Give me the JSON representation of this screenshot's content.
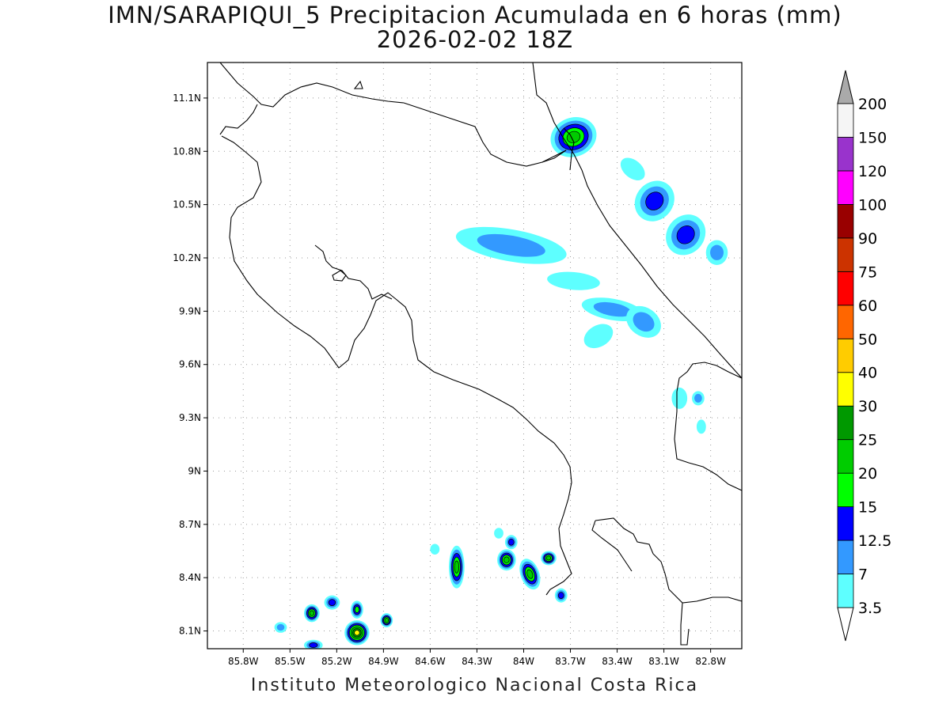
{
  "title": {
    "line1": "IMN/SARAPIQUI_5 Precipitacion Acumulada en 6 horas (mm)",
    "line2": "2026-02-02 18Z"
  },
  "footer": "Instituto Meteorologico Nacional Costa Rica",
  "map": {
    "lon_range": [
      -86.03,
      -82.6
    ],
    "lat_range": [
      8.0,
      11.3
    ],
    "lat_ticks": [
      "11.1N",
      "10.8N",
      "10.5N",
      "10.2N",
      "9.9N",
      "9.6N",
      "9.3N",
      "9N",
      "8.7N",
      "8.4N",
      "8.1N"
    ],
    "lat_tick_values": [
      11.1,
      10.8,
      10.5,
      10.2,
      9.9,
      9.6,
      9.3,
      9.0,
      8.7,
      8.4,
      8.1
    ],
    "lon_ticks": [
      "85.8W",
      "85.5W",
      "85.2W",
      "84.9W",
      "84.6W",
      "84.3W",
      "84W",
      "83.7W",
      "83.4W",
      "83.1W",
      "82.8W"
    ],
    "lon_tick_values": [
      -85.8,
      -85.5,
      -85.2,
      -84.9,
      -84.6,
      -84.3,
      -84.0,
      -83.7,
      -83.4,
      -83.1,
      -82.8
    ],
    "grid": true,
    "precip_cells": [
      {
        "lon": -83.68,
        "lat": 10.88,
        "level": 5,
        "rx": 0.15,
        "ry": 0.11,
        "rot": -20
      },
      {
        "lon": -83.16,
        "lat": 10.52,
        "level": 3,
        "rx": 0.12,
        "ry": 0.12,
        "rot": 40
      },
      {
        "lon": -82.96,
        "lat": 10.33,
        "level": 3,
        "rx": 0.12,
        "ry": 0.12,
        "rot": 40
      },
      {
        "lon": -82.76,
        "lat": 10.23,
        "level": 2,
        "rx": 0.07,
        "ry": 0.07,
        "rot": 0
      },
      {
        "lon": -83.3,
        "lat": 10.7,
        "level": 1,
        "rx": 0.09,
        "ry": 0.05,
        "rot": 40
      },
      {
        "lon": -84.08,
        "lat": 10.27,
        "level": 2,
        "rx": 0.36,
        "ry": 0.09,
        "rot": 10
      },
      {
        "lon": -83.68,
        "lat": 10.07,
        "level": 1,
        "rx": 0.17,
        "ry": 0.05,
        "rot": 5
      },
      {
        "lon": -83.43,
        "lat": 9.91,
        "level": 2,
        "rx": 0.2,
        "ry": 0.06,
        "rot": 10
      },
      {
        "lon": -83.23,
        "lat": 9.84,
        "level": 2,
        "rx": 0.12,
        "ry": 0.08,
        "rot": 35
      },
      {
        "lon": -83.52,
        "lat": 9.76,
        "level": 1,
        "rx": 0.1,
        "ry": 0.06,
        "rot": -30
      },
      {
        "lon": -83.0,
        "lat": 9.41,
        "level": 1,
        "rx": 0.05,
        "ry": 0.06,
        "rot": 0
      },
      {
        "lon": -82.88,
        "lat": 9.41,
        "level": 2,
        "rx": 0.04,
        "ry": 0.04,
        "rot": 0
      },
      {
        "lon": -82.86,
        "lat": 9.25,
        "level": 1,
        "rx": 0.03,
        "ry": 0.04,
        "rot": 0
      },
      {
        "lon": -84.43,
        "lat": 8.46,
        "level": 5,
        "rx": 0.05,
        "ry": 0.12,
        "rot": 0
      },
      {
        "lon": -84.11,
        "lat": 8.5,
        "level": 5,
        "rx": 0.06,
        "ry": 0.06,
        "rot": 0
      },
      {
        "lon": -84.08,
        "lat": 8.6,
        "level": 3,
        "rx": 0.04,
        "ry": 0.04,
        "rot": 0
      },
      {
        "lon": -83.96,
        "lat": 8.42,
        "level": 5,
        "rx": 0.06,
        "ry": 0.09,
        "rot": -20
      },
      {
        "lon": -83.84,
        "lat": 8.51,
        "level": 5,
        "rx": 0.05,
        "ry": 0.04,
        "rot": 0
      },
      {
        "lon": -83.76,
        "lat": 8.3,
        "level": 3,
        "rx": 0.04,
        "ry": 0.04,
        "rot": 0
      },
      {
        "lon": -84.57,
        "lat": 8.56,
        "level": 1,
        "rx": 0.03,
        "ry": 0.03,
        "rot": 0
      },
      {
        "lon": -84.16,
        "lat": 8.65,
        "level": 1,
        "rx": 0.03,
        "ry": 0.03,
        "rot": 0
      },
      {
        "lon": -85.07,
        "lat": 8.09,
        "level": 7,
        "rx": 0.08,
        "ry": 0.07,
        "rot": 0
      },
      {
        "lon": -85.07,
        "lat": 8.22,
        "level": 4,
        "rx": 0.04,
        "ry": 0.05,
        "rot": 0
      },
      {
        "lon": -84.88,
        "lat": 8.16,
        "level": 5,
        "rx": 0.04,
        "ry": 0.04,
        "rot": 0
      },
      {
        "lon": -85.23,
        "lat": 8.26,
        "level": 3,
        "rx": 0.05,
        "ry": 0.04,
        "rot": 0
      },
      {
        "lon": -85.36,
        "lat": 8.2,
        "level": 5,
        "rx": 0.05,
        "ry": 0.05,
        "rot": 0
      },
      {
        "lon": -85.56,
        "lat": 8.12,
        "level": 2,
        "rx": 0.04,
        "ry": 0.03,
        "rot": 0
      },
      {
        "lon": -85.35,
        "lat": 8.02,
        "level": 3,
        "rx": 0.06,
        "ry": 0.03,
        "rot": 0
      }
    ]
  },
  "colorbar": {
    "levels": [
      "3.5",
      "7",
      "12.5",
      "15",
      "20",
      "25",
      "30",
      "40",
      "50",
      "60",
      "75",
      "90",
      "100",
      "120",
      "150",
      "200"
    ],
    "colors": [
      "#5effff",
      "#3399ff",
      "#0000ff",
      "#00ff00",
      "#00cc00",
      "#009900",
      "#ffff00",
      "#ffcc00",
      "#ff6600",
      "#ff0000",
      "#cc3300",
      "#990000",
      "#ff00ff",
      "#9933cc",
      "#f5f5f5",
      "#aaaaaa"
    ]
  }
}
